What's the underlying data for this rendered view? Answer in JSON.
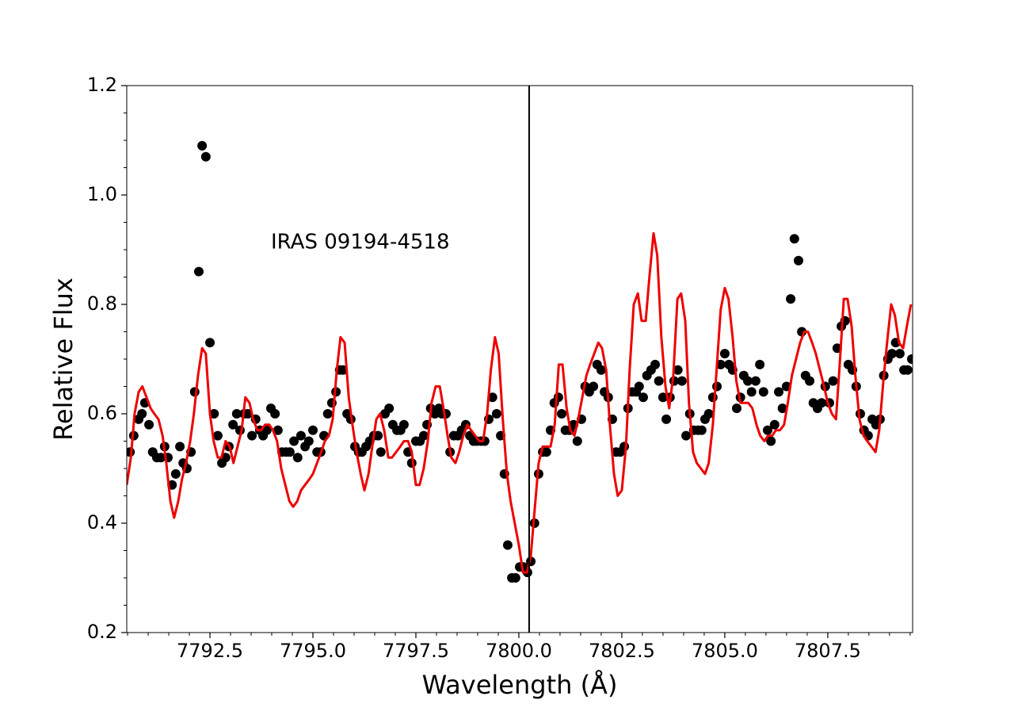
{
  "chart_data": {
    "type": "scatter",
    "annotation": "IRAS 09194-4518",
    "x_label": "Wavelength (Å)",
    "y_label": "Relative Flux",
    "xlim": [
      7790.48,
      7809.56
    ],
    "ylim": [
      0.2,
      1.2
    ],
    "xticks": [
      7792.5,
      {
        "value": 7795,
        "label": "7795.0"
      },
      7797.5,
      {
        "value": 7800,
        "label": "7800.0"
      },
      7802.5,
      {
        "value": 7805,
        "label": "7805.0"
      },
      7807.5
    ],
    "yticks": [
      0.2,
      0.4,
      0.6,
      0.8,
      {
        "value": 1,
        "label": "1.0"
      },
      1.2
    ],
    "xminorticks": [
      7790.5,
      7791,
      7791.5,
      7792,
      7793,
      7793.5,
      7794,
      7794.5,
      7795.5,
      7796,
      7796.5,
      7797,
      7798,
      7798.5,
      7799,
      7799.5,
      7800.5,
      7801,
      7801.5,
      7802,
      7803,
      7803.5,
      7804,
      7804.5,
      7805.5,
      7806,
      7806.5,
      7807,
      7808,
      7808.5,
      7809,
      7809.5
    ],
    "yminorticks": [
      0.25,
      0.3,
      0.35,
      0.45,
      0.5,
      0.55,
      0.65,
      0.7,
      0.75,
      0.85,
      0.9,
      0.95,
      1.05,
      1.1,
      1.15
    ],
    "vline": {
      "x": 7800.25,
      "color": "#000000"
    },
    "series": [
      {
        "kind": "scatter",
        "color": "#000000",
        "x": [
          7790.56,
          7790.65,
          7790.77,
          7790.85,
          7790.92,
          7791.02,
          7791.11,
          7791.21,
          7791.31,
          7791.4,
          7791.48,
          7791.58,
          7791.67,
          7791.77,
          7791.85,
          7791.94,
          7792.04,
          7792.13,
          7792.23,
          7792.31,
          7792.4,
          7792.5,
          7792.6,
          7792.69,
          7792.79,
          7792.88,
          7792.96,
          7793.06,
          7793.15,
          7793.23,
          7793.33,
          7793.42,
          7793.52,
          7793.61,
          7793.71,
          7793.79,
          7793.88,
          7793.98,
          7794.08,
          7794.15,
          7794.25,
          7794.35,
          7794.44,
          7794.54,
          7794.63,
          7794.71,
          7794.81,
          7794.9,
          7795.0,
          7795.1,
          7795.19,
          7795.27,
          7795.36,
          7795.46,
          7795.56,
          7795.65,
          7795.73,
          7795.83,
          7795.92,
          7796.02,
          7796.11,
          7796.19,
          7796.29,
          7796.38,
          7796.48,
          7796.58,
          7796.65,
          7796.75,
          7796.85,
          7796.94,
          7797.04,
          7797.13,
          7797.21,
          7797.31,
          7797.4,
          7797.5,
          7797.6,
          7797.69,
          7797.77,
          7797.86,
          7797.96,
          7798.06,
          7798.13,
          7798.23,
          7798.33,
          7798.42,
          7798.52,
          7798.61,
          7798.71,
          7798.81,
          7798.9,
          7798.98,
          7799.08,
          7799.17,
          7799.27,
          7799.36,
          7799.46,
          7799.56,
          7799.65,
          7799.73,
          7799.83,
          7799.92,
          7800.02,
          7800.11,
          7800.21,
          7800.29,
          7800.38,
          7800.48,
          7800.58,
          7800.67,
          7800.77,
          7800.86,
          7800.96,
          7801.04,
          7801.13,
          7801.23,
          7801.33,
          7801.42,
          7801.52,
          7801.61,
          7801.71,
          7801.81,
          7801.9,
          7802.0,
          7802.08,
          7802.17,
          7802.27,
          7802.36,
          7802.46,
          7802.56,
          7802.65,
          7802.75,
          7802.85,
          7802.92,
          7803.02,
          7803.11,
          7803.21,
          7803.31,
          7803.4,
          7803.5,
          7803.58,
          7803.67,
          7803.77,
          7803.86,
          7803.96,
          7804.06,
          7804.15,
          7804.25,
          7804.35,
          7804.44,
          7804.52,
          7804.61,
          7804.71,
          7804.81,
          7804.9,
          7805.0,
          7805.1,
          7805.19,
          7805.29,
          7805.38,
          7805.46,
          7805.56,
          7805.65,
          7805.75,
          7805.85,
          7805.94,
          7806.04,
          7806.12,
          7806.21,
          7806.31,
          7806.4,
          7806.5,
          7806.6,
          7806.69,
          7806.79,
          7806.87,
          7806.96,
          7807.06,
          7807.15,
          7807.25,
          7807.35,
          7807.44,
          7807.54,
          7807.63,
          7807.73,
          7807.83,
          7807.92,
          7808.0,
          7808.1,
          7808.19,
          7808.29,
          7808.38,
          7808.48,
          7808.58,
          7808.67,
          7808.77,
          7808.86,
          7808.96,
          7809.06,
          7809.15,
          7809.25,
          7809.35,
          7809.44,
          7809.54
        ],
        "values": [
          0.53,
          0.56,
          0.59,
          0.6,
          0.62,
          0.58,
          0.53,
          0.52,
          0.52,
          0.54,
          0.52,
          0.47,
          0.49,
          0.54,
          0.51,
          0.5,
          0.53,
          0.64,
          0.86,
          1.09,
          1.07,
          0.73,
          0.6,
          0.56,
          0.51,
          0.52,
          0.54,
          0.58,
          0.6,
          0.57,
          0.6,
          0.6,
          0.56,
          0.59,
          0.57,
          0.56,
          0.57,
          0.61,
          0.6,
          0.57,
          0.53,
          0.53,
          0.53,
          0.55,
          0.52,
          0.56,
          0.54,
          0.55,
          0.57,
          0.53,
          0.53,
          0.56,
          0.6,
          0.62,
          0.64,
          0.68,
          0.68,
          0.6,
          0.59,
          0.54,
          0.53,
          0.53,
          0.54,
          0.55,
          0.56,
          0.56,
          0.53,
          0.6,
          0.61,
          0.58,
          0.57,
          0.57,
          0.58,
          0.53,
          0.51,
          0.55,
          0.55,
          0.56,
          0.58,
          0.61,
          0.6,
          0.61,
          0.6,
          0.6,
          0.53,
          0.56,
          0.56,
          0.57,
          0.58,
          0.56,
          0.55,
          0.55,
          0.55,
          0.55,
          0.59,
          0.63,
          0.6,
          0.56,
          0.49,
          0.36,
          0.3,
          0.3,
          0.32,
          0.32,
          0.31,
          0.33,
          0.4,
          0.49,
          0.53,
          0.53,
          0.57,
          0.62,
          0.63,
          0.6,
          0.57,
          0.57,
          0.58,
          0.55,
          0.59,
          0.65,
          0.64,
          0.65,
          0.69,
          0.68,
          0.64,
          0.63,
          0.59,
          0.53,
          0.53,
          0.54,
          0.61,
          0.64,
          0.64,
          0.65,
          0.63,
          0.67,
          0.68,
          0.69,
          0.66,
          0.63,
          0.59,
          0.63,
          0.66,
          0.68,
          0.66,
          0.56,
          0.6,
          0.57,
          0.57,
          0.57,
          0.59,
          0.6,
          0.63,
          0.65,
          0.69,
          0.71,
          0.69,
          0.68,
          0.61,
          0.63,
          0.67,
          0.66,
          0.64,
          0.66,
          0.69,
          0.64,
          0.57,
          0.55,
          0.58,
          0.64,
          0.61,
          0.65,
          0.81,
          0.92,
          0.88,
          0.75,
          0.67,
          0.66,
          0.62,
          0.61,
          0.62,
          0.65,
          0.62,
          0.66,
          0.72,
          0.76,
          0.77,
          0.69,
          0.68,
          0.65,
          0.6,
          0.57,
          0.56,
          0.59,
          0.58,
          0.59,
          0.67,
          0.7,
          0.71,
          0.73,
          0.71,
          0.68,
          0.68,
          0.7
        ]
      },
      {
        "kind": "line",
        "color": "#ee0000",
        "x": [
          7790.48,
          7790.58,
          7790.67,
          7790.77,
          7790.86,
          7790.96,
          7791.06,
          7791.15,
          7791.25,
          7791.35,
          7791.44,
          7791.54,
          7791.63,
          7791.73,
          7791.82,
          7791.92,
          7792.02,
          7792.11,
          7792.21,
          7792.31,
          7792.4,
          7792.5,
          7792.59,
          7792.69,
          7792.78,
          7792.88,
          7792.98,
          7793.07,
          7793.17,
          7793.27,
          7793.36,
          7793.46,
          7793.55,
          7793.65,
          7793.74,
          7793.84,
          7793.94,
          7794.03,
          7794.13,
          7794.23,
          7794.33,
          7794.43,
          7794.52,
          7794.62,
          7794.71,
          7794.81,
          7794.91,
          7795.0,
          7795.1,
          7795.2,
          7795.29,
          7795.39,
          7795.48,
          7795.58,
          7795.67,
          7795.77,
          7795.87,
          7795.96,
          7796.06,
          7796.16,
          7796.25,
          7796.35,
          7796.44,
          7796.54,
          7796.63,
          7796.73,
          7796.83,
          7796.92,
          7797.02,
          7797.12,
          7797.21,
          7797.31,
          7797.4,
          7797.5,
          7797.59,
          7797.69,
          7797.79,
          7797.88,
          7797.98,
          7798.08,
          7798.17,
          7798.27,
          7798.36,
          7798.46,
          7798.55,
          7798.65,
          7798.75,
          7798.84,
          7798.94,
          7799.04,
          7799.13,
          7799.23,
          7799.32,
          7799.42,
          7799.51,
          7799.61,
          7799.71,
          7799.8,
          7799.9,
          7800.0,
          7800.1,
          7800.2,
          7800.29,
          7800.39,
          7800.48,
          7800.58,
          7800.68,
          7800.77,
          7800.87,
          7800.97,
          7801.06,
          7801.16,
          7801.25,
          7801.35,
          7801.44,
          7801.54,
          7801.64,
          7801.73,
          7801.83,
          7801.93,
          7802.02,
          7802.12,
          7802.21,
          7802.31,
          7802.4,
          7802.5,
          7802.6,
          7802.69,
          7802.79,
          7802.89,
          7802.98,
          7803.08,
          7803.17,
          7803.27,
          7803.36,
          7803.46,
          7803.56,
          7803.65,
          7803.75,
          7803.85,
          7803.94,
          7804.04,
          7804.13,
          7804.23,
          7804.32,
          7804.42,
          7804.52,
          7804.61,
          7804.71,
          7804.81,
          7804.9,
          7805.0,
          7805.09,
          7805.19,
          7805.28,
          7805.38,
          7805.48,
          7805.57,
          7805.67,
          7805.77,
          7805.86,
          7805.96,
          7806.05,
          7806.15,
          7806.24,
          7806.34,
          7806.44,
          7806.53,
          7806.63,
          7806.73,
          7806.83,
          7806.93,
          7807.02,
          7807.12,
          7807.21,
          7807.31,
          7807.41,
          7807.5,
          7807.6,
          7807.7,
          7807.79,
          7807.89,
          7807.98,
          7808.08,
          7808.17,
          7808.27,
          7808.37,
          7808.46,
          7808.56,
          7808.66,
          7808.75,
          7808.85,
          7808.94,
          7809.04,
          7809.13,
          7809.23,
          7809.33,
          7809.42,
          7809.52
        ],
        "values": [
          0.47,
          0.52,
          0.6,
          0.64,
          0.65,
          0.63,
          0.61,
          0.6,
          0.59,
          0.56,
          0.51,
          0.44,
          0.41,
          0.44,
          0.48,
          0.51,
          0.55,
          0.6,
          0.67,
          0.72,
          0.71,
          0.6,
          0.55,
          0.52,
          0.52,
          0.55,
          0.54,
          0.51,
          0.54,
          0.57,
          0.63,
          0.62,
          0.59,
          0.57,
          0.57,
          0.58,
          0.58,
          0.57,
          0.55,
          0.5,
          0.47,
          0.44,
          0.43,
          0.44,
          0.46,
          0.47,
          0.48,
          0.49,
          0.51,
          0.53,
          0.55,
          0.56,
          0.59,
          0.68,
          0.74,
          0.73,
          0.63,
          0.58,
          0.53,
          0.49,
          0.46,
          0.49,
          0.54,
          0.59,
          0.6,
          0.57,
          0.52,
          0.52,
          0.53,
          0.54,
          0.55,
          0.55,
          0.53,
          0.47,
          0.47,
          0.5,
          0.55,
          0.62,
          0.65,
          0.65,
          0.61,
          0.56,
          0.52,
          0.51,
          0.53,
          0.56,
          0.58,
          0.57,
          0.56,
          0.55,
          0.55,
          0.6,
          0.68,
          0.74,
          0.71,
          0.59,
          0.49,
          0.44,
          0.4,
          0.36,
          0.31,
          0.31,
          0.34,
          0.43,
          0.51,
          0.54,
          0.54,
          0.54,
          0.58,
          0.69,
          0.69,
          0.61,
          0.57,
          0.56,
          0.59,
          0.63,
          0.67,
          0.69,
          0.71,
          0.73,
          0.72,
          0.68,
          0.58,
          0.49,
          0.45,
          0.46,
          0.54,
          0.68,
          0.8,
          0.82,
          0.77,
          0.77,
          0.85,
          0.93,
          0.89,
          0.74,
          0.65,
          0.61,
          0.67,
          0.81,
          0.82,
          0.77,
          0.62,
          0.53,
          0.51,
          0.5,
          0.49,
          0.51,
          0.58,
          0.69,
          0.79,
          0.83,
          0.81,
          0.74,
          0.66,
          0.62,
          0.62,
          0.62,
          0.61,
          0.58,
          0.56,
          0.55,
          0.56,
          0.56,
          0.57,
          0.57,
          0.58,
          0.62,
          0.67,
          0.7,
          0.73,
          0.75,
          0.75,
          0.73,
          0.71,
          0.68,
          0.65,
          0.62,
          0.6,
          0.59,
          0.69,
          0.81,
          0.81,
          0.76,
          0.67,
          0.59,
          0.56,
          0.55,
          0.54,
          0.53,
          0.57,
          0.66,
          0.73,
          0.8,
          0.78,
          0.73,
          0.72,
          0.76,
          0.8
        ]
      }
    ]
  }
}
